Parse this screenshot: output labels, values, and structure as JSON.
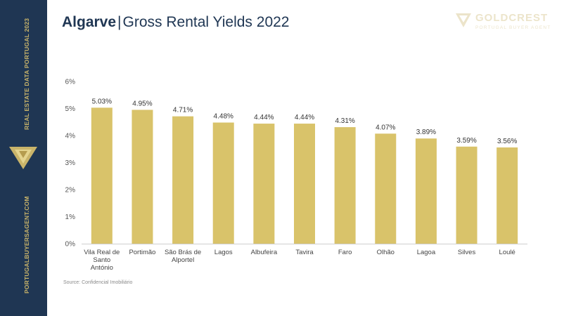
{
  "sidebar": {
    "top_text": "REAL ESTATE DATA PORTUGAL 2023",
    "bottom_text": "PORTUGALBUYERSAGENT.COM",
    "logo_icon": "gold-triangle-logo-icon",
    "bg_color": "#1f3653",
    "accent_color": "#c9b46a"
  },
  "header": {
    "title_bold": "Algarve",
    "title_sep": "|",
    "title_main": "Gross Rental Yields 2022"
  },
  "brand": {
    "name": "GOLDCREST",
    "tagline": "PORTUGAL BUYER AGENT",
    "logo_icon": "gold-triangle-logo-icon"
  },
  "source": "Source: Confidencial Imobiliário",
  "chart_data": {
    "type": "bar",
    "categories": [
      [
        "Vila Real de",
        "Santo",
        "António"
      ],
      [
        "Portimão"
      ],
      [
        "São Brás de",
        "Alportel"
      ],
      [
        "Lagos"
      ],
      [
        "Albufeira"
      ],
      [
        "Tavira"
      ],
      [
        "Faro"
      ],
      [
        "Olhão"
      ],
      [
        "Lagoa"
      ],
      [
        "Silves"
      ],
      [
        "Loulé"
      ]
    ],
    "values": [
      5.03,
      4.95,
      4.71,
      4.48,
      4.44,
      4.44,
      4.31,
      4.07,
      3.89,
      3.59,
      3.56
    ],
    "value_labels": [
      "5.03%",
      "4.95%",
      "4.71%",
      "4.48%",
      "4.44%",
      "4.44%",
      "4.31%",
      "4.07%",
      "3.89%",
      "3.59%",
      "3.56%"
    ],
    "y_ticks": [
      "0%",
      "1%",
      "2%",
      "3%",
      "4%",
      "5%",
      "6%"
    ],
    "ylim": [
      0,
      6
    ],
    "grid": false,
    "bar_color": "#d9c36a",
    "title": "",
    "xlabel": "",
    "ylabel": ""
  }
}
